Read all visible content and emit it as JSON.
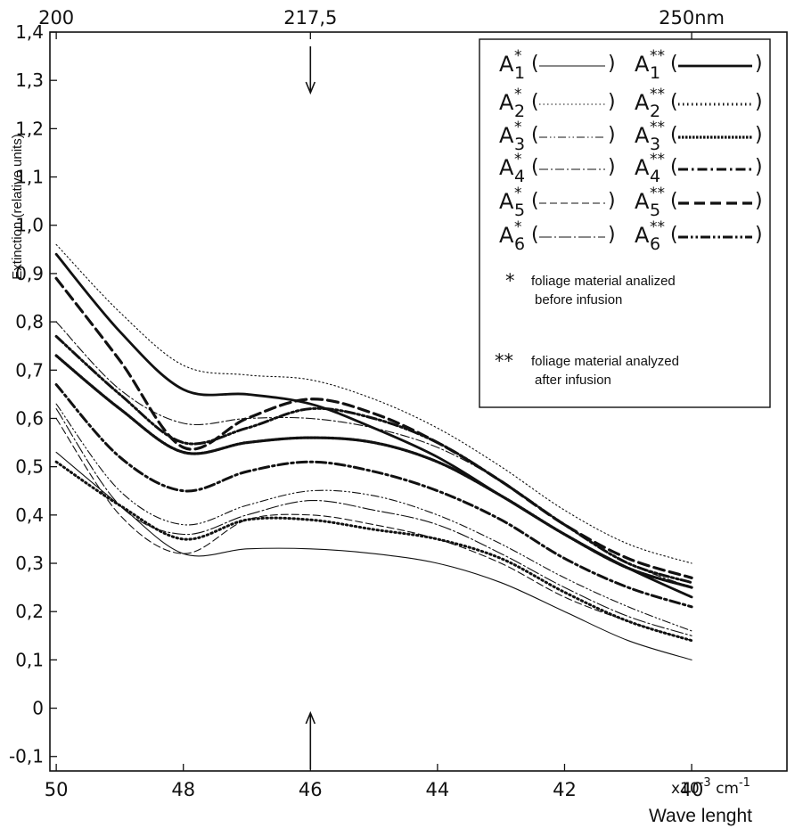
{
  "chart_data": {
    "type": "line",
    "xlabel": "Wave lenght",
    "x_unit_label": "x10",
    "x_unit_exp": "-3",
    "x_unit_tail": " cm",
    "x_unit_tail_exp": "-1",
    "ylabel": "Extinction (relative units)",
    "xlim": [
      50.1,
      38.5
    ],
    "ylim": [
      -0.13,
      1.4
    ],
    "grid": false,
    "legend_position": "top-right",
    "x_ticks": [
      {
        "value": 50,
        "label": "50"
      },
      {
        "value": 48,
        "label": "48"
      },
      {
        "value": 46,
        "label": "46"
      },
      {
        "value": 44,
        "label": "44"
      },
      {
        "value": 42,
        "label": "42"
      },
      {
        "value": 40,
        "label": "40"
      }
    ],
    "y_ticks": [
      {
        "value": -0.1,
        "label": "-0,1"
      },
      {
        "value": 0,
        "label": "0"
      },
      {
        "value": 0.1,
        "label": "0,1"
      },
      {
        "value": 0.2,
        "label": "0,2"
      },
      {
        "value": 0.3,
        "label": "0,3"
      },
      {
        "value": 0.4,
        "label": "0,4"
      },
      {
        "value": 0.5,
        "label": "0,5"
      },
      {
        "value": 0.6,
        "label": "0,6"
      },
      {
        "value": 0.7,
        "label": "0,7"
      },
      {
        "value": 0.8,
        "label": "0,8"
      },
      {
        "value": 0.9,
        "label": "0,9"
      },
      {
        "value": 1.0,
        "label": "1,0"
      },
      {
        "value": 1.1,
        "label": "1,1"
      },
      {
        "value": 1.2,
        "label": "1,2"
      },
      {
        "value": 1.3,
        "label": "1,3"
      },
      {
        "value": 1.4,
        "label": "1,4"
      }
    ],
    "top_axis_ticks": [
      {
        "x": 50,
        "label": "200"
      },
      {
        "x": 46,
        "label": "217,5"
      },
      {
        "x": 40,
        "label": "250nm"
      }
    ],
    "marker_arrows_x": 46,
    "series": [
      {
        "name": "A*1",
        "base": "A",
        "sup": "*",
        "sub": "1",
        "style": "thin-solid",
        "x": [
          50,
          49,
          48,
          47,
          46,
          45,
          44,
          43,
          42,
          41,
          40
        ],
        "y": [
          0.53,
          0.42,
          0.32,
          0.33,
          0.33,
          0.32,
          0.3,
          0.26,
          0.2,
          0.14,
          0.1
        ]
      },
      {
        "name": "A*2",
        "base": "A",
        "sup": "*",
        "sub": "2",
        "style": "thin-dotted",
        "x": [
          50,
          49,
          48,
          47,
          46,
          45,
          44,
          43,
          42,
          41,
          40
        ],
        "y": [
          0.96,
          0.82,
          0.71,
          0.69,
          0.68,
          0.64,
          0.58,
          0.5,
          0.41,
          0.34,
          0.3
        ]
      },
      {
        "name": "A*3",
        "base": "A",
        "sup": "*",
        "sub": "3",
        "style": "thin-dashdotdot",
        "x": [
          50,
          49,
          48,
          47,
          46,
          45,
          44,
          43,
          42,
          41,
          40
        ],
        "y": [
          0.63,
          0.45,
          0.38,
          0.42,
          0.45,
          0.44,
          0.4,
          0.34,
          0.27,
          0.21,
          0.16
        ]
      },
      {
        "name": "A*4",
        "base": "A",
        "sup": "*",
        "sub": "4",
        "style": "thin-dashdot",
        "x": [
          50,
          49,
          48,
          47,
          46,
          45,
          44,
          43,
          42,
          41,
          40
        ],
        "y": [
          0.8,
          0.66,
          0.59,
          0.6,
          0.6,
          0.58,
          0.54,
          0.47,
          0.38,
          0.3,
          0.25
        ]
      },
      {
        "name": "A*5",
        "base": "A",
        "sup": "*",
        "sub": "5",
        "style": "thin-dashed",
        "x": [
          50,
          49,
          48,
          47,
          46,
          45,
          44,
          43,
          42,
          41,
          40
        ],
        "y": [
          0.6,
          0.4,
          0.32,
          0.39,
          0.4,
          0.38,
          0.35,
          0.3,
          0.23,
          0.18,
          0.14
        ]
      },
      {
        "name": "A*6",
        "base": "A",
        "sup": "*",
        "sub": "6",
        "style": "thin-longdashdot",
        "x": [
          50,
          49,
          48,
          47,
          46,
          45,
          44,
          43,
          42,
          41,
          40
        ],
        "y": [
          0.62,
          0.42,
          0.36,
          0.4,
          0.43,
          0.41,
          0.38,
          0.32,
          0.25,
          0.19,
          0.15
        ]
      },
      {
        "name": "A**1",
        "base": "A",
        "sup": "**",
        "sub": "1",
        "style": "thick-solid",
        "x": [
          50,
          49,
          48,
          47,
          46,
          45,
          44,
          43,
          42,
          41,
          40
        ],
        "y": [
          0.94,
          0.78,
          0.66,
          0.65,
          0.63,
          0.58,
          0.52,
          0.44,
          0.36,
          0.29,
          0.23
        ]
      },
      {
        "name": "A**2",
        "base": "A",
        "sup": "**",
        "sub": "2",
        "style": "thick-dotted",
        "x": [
          50,
          49,
          48,
          47,
          46,
          45,
          44,
          43,
          42,
          41,
          40
        ],
        "y": [
          0.51,
          0.42,
          0.35,
          0.39,
          0.39,
          0.37,
          0.35,
          0.31,
          0.24,
          0.18,
          0.14
        ]
      },
      {
        "name": "A**3",
        "base": "A",
        "sup": "**",
        "sub": "3",
        "style": "thick-densedot",
        "x": [
          50,
          49,
          48,
          47,
          46,
          45,
          44,
          43,
          42,
          41,
          40
        ],
        "y": [
          0.73,
          0.62,
          0.53,
          0.55,
          0.56,
          0.55,
          0.51,
          0.44,
          0.36,
          0.29,
          0.25
        ]
      },
      {
        "name": "A**4",
        "base": "A",
        "sup": "**",
        "sub": "4",
        "style": "thick-dashdot",
        "x": [
          50,
          49,
          48,
          47,
          46,
          45,
          44,
          43,
          42,
          41,
          40
        ],
        "y": [
          0.67,
          0.52,
          0.45,
          0.49,
          0.51,
          0.49,
          0.45,
          0.39,
          0.31,
          0.25,
          0.21
        ]
      },
      {
        "name": "A**5",
        "base": "A",
        "sup": "**",
        "sub": "5",
        "style": "thick-dashed",
        "x": [
          50,
          49,
          48,
          47,
          46,
          45,
          44,
          43,
          42,
          41,
          40
        ],
        "y": [
          0.89,
          0.72,
          0.54,
          0.6,
          0.64,
          0.61,
          0.55,
          0.47,
          0.38,
          0.31,
          0.27
        ]
      },
      {
        "name": "A**6",
        "base": "A",
        "sup": "**",
        "sub": "6",
        "style": "thick-dashdotdot",
        "x": [
          50,
          49,
          48,
          47,
          46,
          45,
          44,
          43,
          42,
          41,
          40
        ],
        "y": [
          0.77,
          0.65,
          0.55,
          0.58,
          0.62,
          0.6,
          0.55,
          0.47,
          0.38,
          0.3,
          0.26
        ]
      }
    ],
    "notes": [
      {
        "marker": "*",
        "text": [
          "foliage material analized",
          "before infusion"
        ]
      },
      {
        "marker": "**",
        "text": [
          "foliage material analyzed",
          "after infusion"
        ]
      }
    ]
  }
}
